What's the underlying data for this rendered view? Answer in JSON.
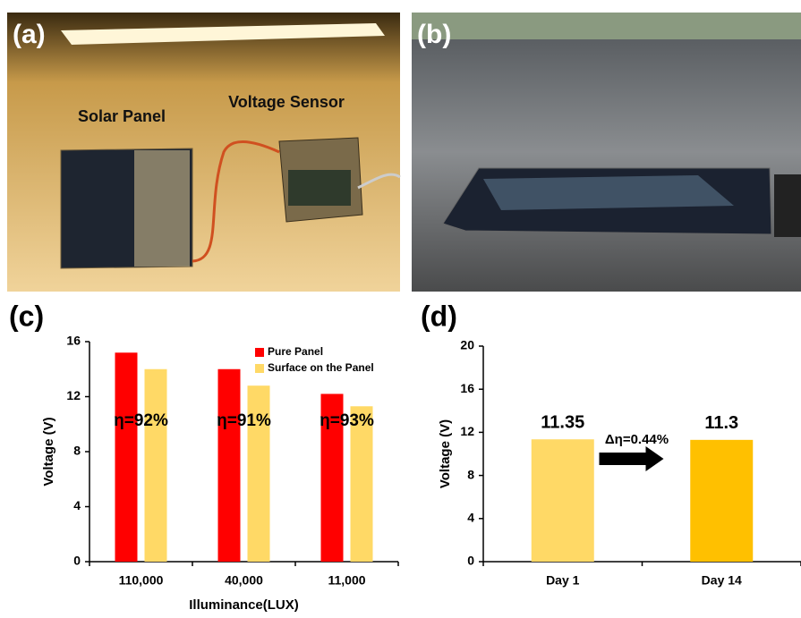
{
  "photos": [
    {
      "label": "(a)",
      "annotations": [
        "Solar Panel",
        "Voltage Sensor"
      ]
    },
    {
      "label": "(b)"
    }
  ],
  "chart_data": [
    {
      "type": "bar",
      "panel_label": "(c)",
      "x_label": "Illuminance(LUX)",
      "y_label": "Voltage (V)",
      "categories": [
        "110,000",
        "40,000",
        "11,000"
      ],
      "series": [
        {
          "name": "Pure Panel",
          "color": "#ff0000",
          "values": [
            15.2,
            14.0,
            12.2
          ]
        },
        {
          "name": "Surface on the Panel",
          "color": "#ffd966",
          "values": [
            14.0,
            12.8,
            11.3
          ]
        }
      ],
      "annotations": [
        "η=92%",
        "η=91%",
        "η=93%"
      ],
      "ylim": [
        0,
        16
      ],
      "yticks": [
        0,
        4,
        8,
        12,
        16
      ],
      "legend": "top-right"
    },
    {
      "type": "bar",
      "panel_label": "(d)",
      "y_label": "Voltage (V)",
      "categories": [
        "Day 1",
        "Day 14"
      ],
      "values": [
        11.35,
        11.3
      ],
      "colors": [
        "#ffd966",
        "#ffc000"
      ],
      "annotations": [
        "Δη=0.44%"
      ],
      "ylim": [
        0,
        20
      ],
      "yticks": [
        0,
        4,
        8,
        12,
        16,
        20
      ]
    }
  ]
}
